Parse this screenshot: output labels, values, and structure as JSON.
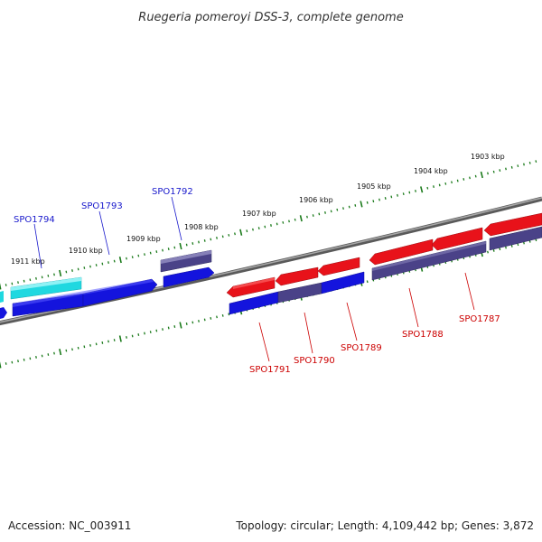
{
  "title": "Ruegeria pomeroyi DSS-3, complete genome",
  "accession": "Accession: NC_003911",
  "summary": "Topology: circular; Length: 4,109,442 bp; Genes: 3,872",
  "colors": {
    "backbone": "#7a7a7a",
    "ticks": "#1a7a1a",
    "forward_label": "#1a1acc",
    "reverse_label": "#cc0000",
    "gene_red": "#e8121a",
    "gene_blue": "#1414dd",
    "gene_slate": "#4a4288",
    "gene_cyan": "#20d8e0"
  },
  "kbp_labels": [
    "1903 kbp",
    "1904 kbp",
    "1905 kbp",
    "1906 kbp",
    "1907 kbp",
    "1908 kbp",
    "1909 kbp",
    "1910 kbp",
    "1911 kbp"
  ],
  "gene_labels": {
    "SPO1794": "SPO1794",
    "SPO1793": "SPO1793",
    "SPO1792": "SPO1792",
    "SPO1791": "SPO1791",
    "SPO1790": "SPO1790",
    "SPO1789": "SPO1789",
    "SPO1788": "SPO1788",
    "SPO1787": "SPO1787"
  }
}
